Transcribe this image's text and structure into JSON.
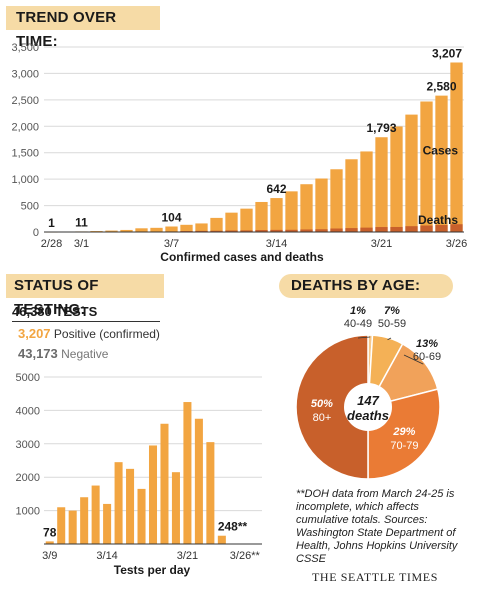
{
  "header": {
    "trend_title": "TREND OVER TIME:",
    "status_title": "STATUS OF TESTING:",
    "age_title": "DEATHS BY AGE:"
  },
  "chart_data": [
    {
      "type": "bar",
      "title": "TREND OVER TIME:",
      "xlabel": "Confirmed cases and deaths",
      "ylabel": "",
      "ylim": [
        0,
        3500
      ],
      "yticks": [
        0,
        500,
        1000,
        1500,
        2000,
        2500,
        3000,
        3500
      ],
      "ytick_labels": [
        "0",
        "500",
        "1,000",
        "1,500",
        "2,000",
        "2,500",
        "3,000",
        "3,500"
      ],
      "x_tick_labels": [
        {
          "index": 0,
          "label": "2/28"
        },
        {
          "index": 2,
          "label": "3/1"
        },
        {
          "index": 8,
          "label": "3/7"
        },
        {
          "index": 15,
          "label": "3/14"
        },
        {
          "index": 22,
          "label": "3/21"
        },
        {
          "index": 27,
          "label": "3/26"
        }
      ],
      "series": [
        {
          "name": "Cases",
          "color": "#f2a541",
          "values": [
            1,
            6,
            11,
            18,
            27,
            39,
            70,
            79,
            104,
            136,
            162,
            267,
            366,
            442,
            568,
            642,
            769,
            904,
            1012,
            1187,
            1376,
            1524,
            1793,
            1996,
            2221,
            2469,
            2580,
            3207
          ]
        },
        {
          "name": "Deaths",
          "color": "#c8602b",
          "values": [
            0,
            1,
            1,
            2,
            5,
            6,
            10,
            10,
            11,
            18,
            22,
            24,
            29,
            31,
            37,
            40,
            42,
            48,
            52,
            66,
            74,
            83,
            94,
            95,
            110,
            123,
            132,
            147
          ]
        }
      ],
      "data_labels": [
        {
          "index": 0,
          "text": "1"
        },
        {
          "index": 2,
          "text": "11"
        },
        {
          "index": 8,
          "text": "104"
        },
        {
          "index": 15,
          "text": "642"
        },
        {
          "index": 22,
          "text": "1,793"
        },
        {
          "index": 26,
          "text": "2,580"
        },
        {
          "index": 27,
          "text": "3,207"
        }
      ],
      "legend": [
        "Cases",
        "Deaths"
      ]
    },
    {
      "type": "bar",
      "title": "STATUS OF TESTING:",
      "xlabel": "Tests per day",
      "ylabel": "",
      "ylim": [
        0,
        5000
      ],
      "yticks": [
        1000,
        2000,
        3000,
        4000,
        5000
      ],
      "ytick_labels": [
        "1000",
        "2000",
        "3000",
        "4000",
        "5000"
      ],
      "x_tick_labels": [
        {
          "index": 0,
          "label": "3/9"
        },
        {
          "index": 5,
          "label": "3/14"
        },
        {
          "index": 12,
          "label": "3/21"
        },
        {
          "index": 17,
          "label": "3/26**"
        }
      ],
      "values": [
        78,
        1100,
        1000,
        1400,
        1750,
        1200,
        2450,
        2250,
        1650,
        2950,
        3600,
        2150,
        4250,
        3750,
        3050,
        248
      ],
      "color": "#f2a541",
      "data_labels": [
        {
          "index": 0,
          "text": "78"
        },
        {
          "index": 15,
          "text": "248**"
        }
      ]
    },
    {
      "type": "pie",
      "title": "DEATHS BY AGE:",
      "center_label": [
        "147",
        "deaths"
      ],
      "slices": [
        {
          "label": "40-49",
          "percent": 1,
          "percent_label": "1%",
          "color": "#f6c88c"
        },
        {
          "label": "50-59",
          "percent": 7,
          "percent_label": "7%",
          "color": "#f4b156"
        },
        {
          "label": "60-69",
          "percent": 13,
          "percent_label": "13%",
          "color": "#f1a25a"
        },
        {
          "label": "70-79",
          "percent": 29,
          "percent_label": "29%",
          "color": "#ea7b35"
        },
        {
          "label": "80+",
          "percent": 50,
          "percent_label": "50%",
          "color": "#c8602b"
        }
      ]
    }
  ],
  "testing": {
    "total": "46,380 TESTS",
    "positive_value": "3,207",
    "positive_label": "Positive (confirmed)",
    "negative_value": "43,173",
    "negative_label": "Negative"
  },
  "note": "**DOH data from March 24-25 is incomplete, which affects cumulative totals. Sources: Washington State Department of Health, Johns Hopkins University CSSE",
  "credit": "THE SEATTLE TIMES"
}
